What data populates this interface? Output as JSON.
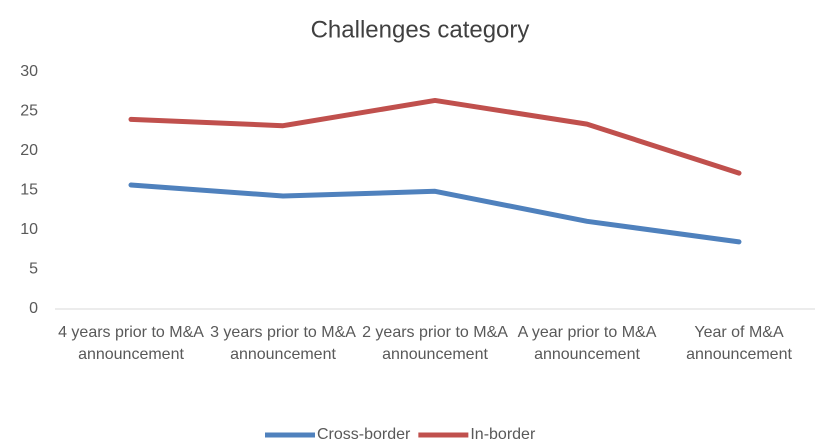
{
  "chart_data": {
    "type": "line",
    "title": "Challenges category",
    "categories": [
      "4 years prior to M&A announcement",
      "3 years prior to M&A announcement",
      "2 years prior to M&A announcement",
      "A year prior to M&A announcement",
      "Year of M&A announcement"
    ],
    "series": [
      {
        "name": "Cross-border",
        "color": "#4f81bd",
        "values": [
          15.7,
          14.3,
          14.9,
          11.1,
          8.5
        ]
      },
      {
        "name": "In-border",
        "color": "#c0504d",
        "values": [
          24.0,
          23.2,
          26.4,
          23.4,
          17.2
        ]
      }
    ],
    "ylim": [
      0,
      30
    ],
    "yticks": [
      0,
      5,
      10,
      15,
      20,
      25,
      30
    ],
    "grid": false,
    "legend": "bottom"
  }
}
